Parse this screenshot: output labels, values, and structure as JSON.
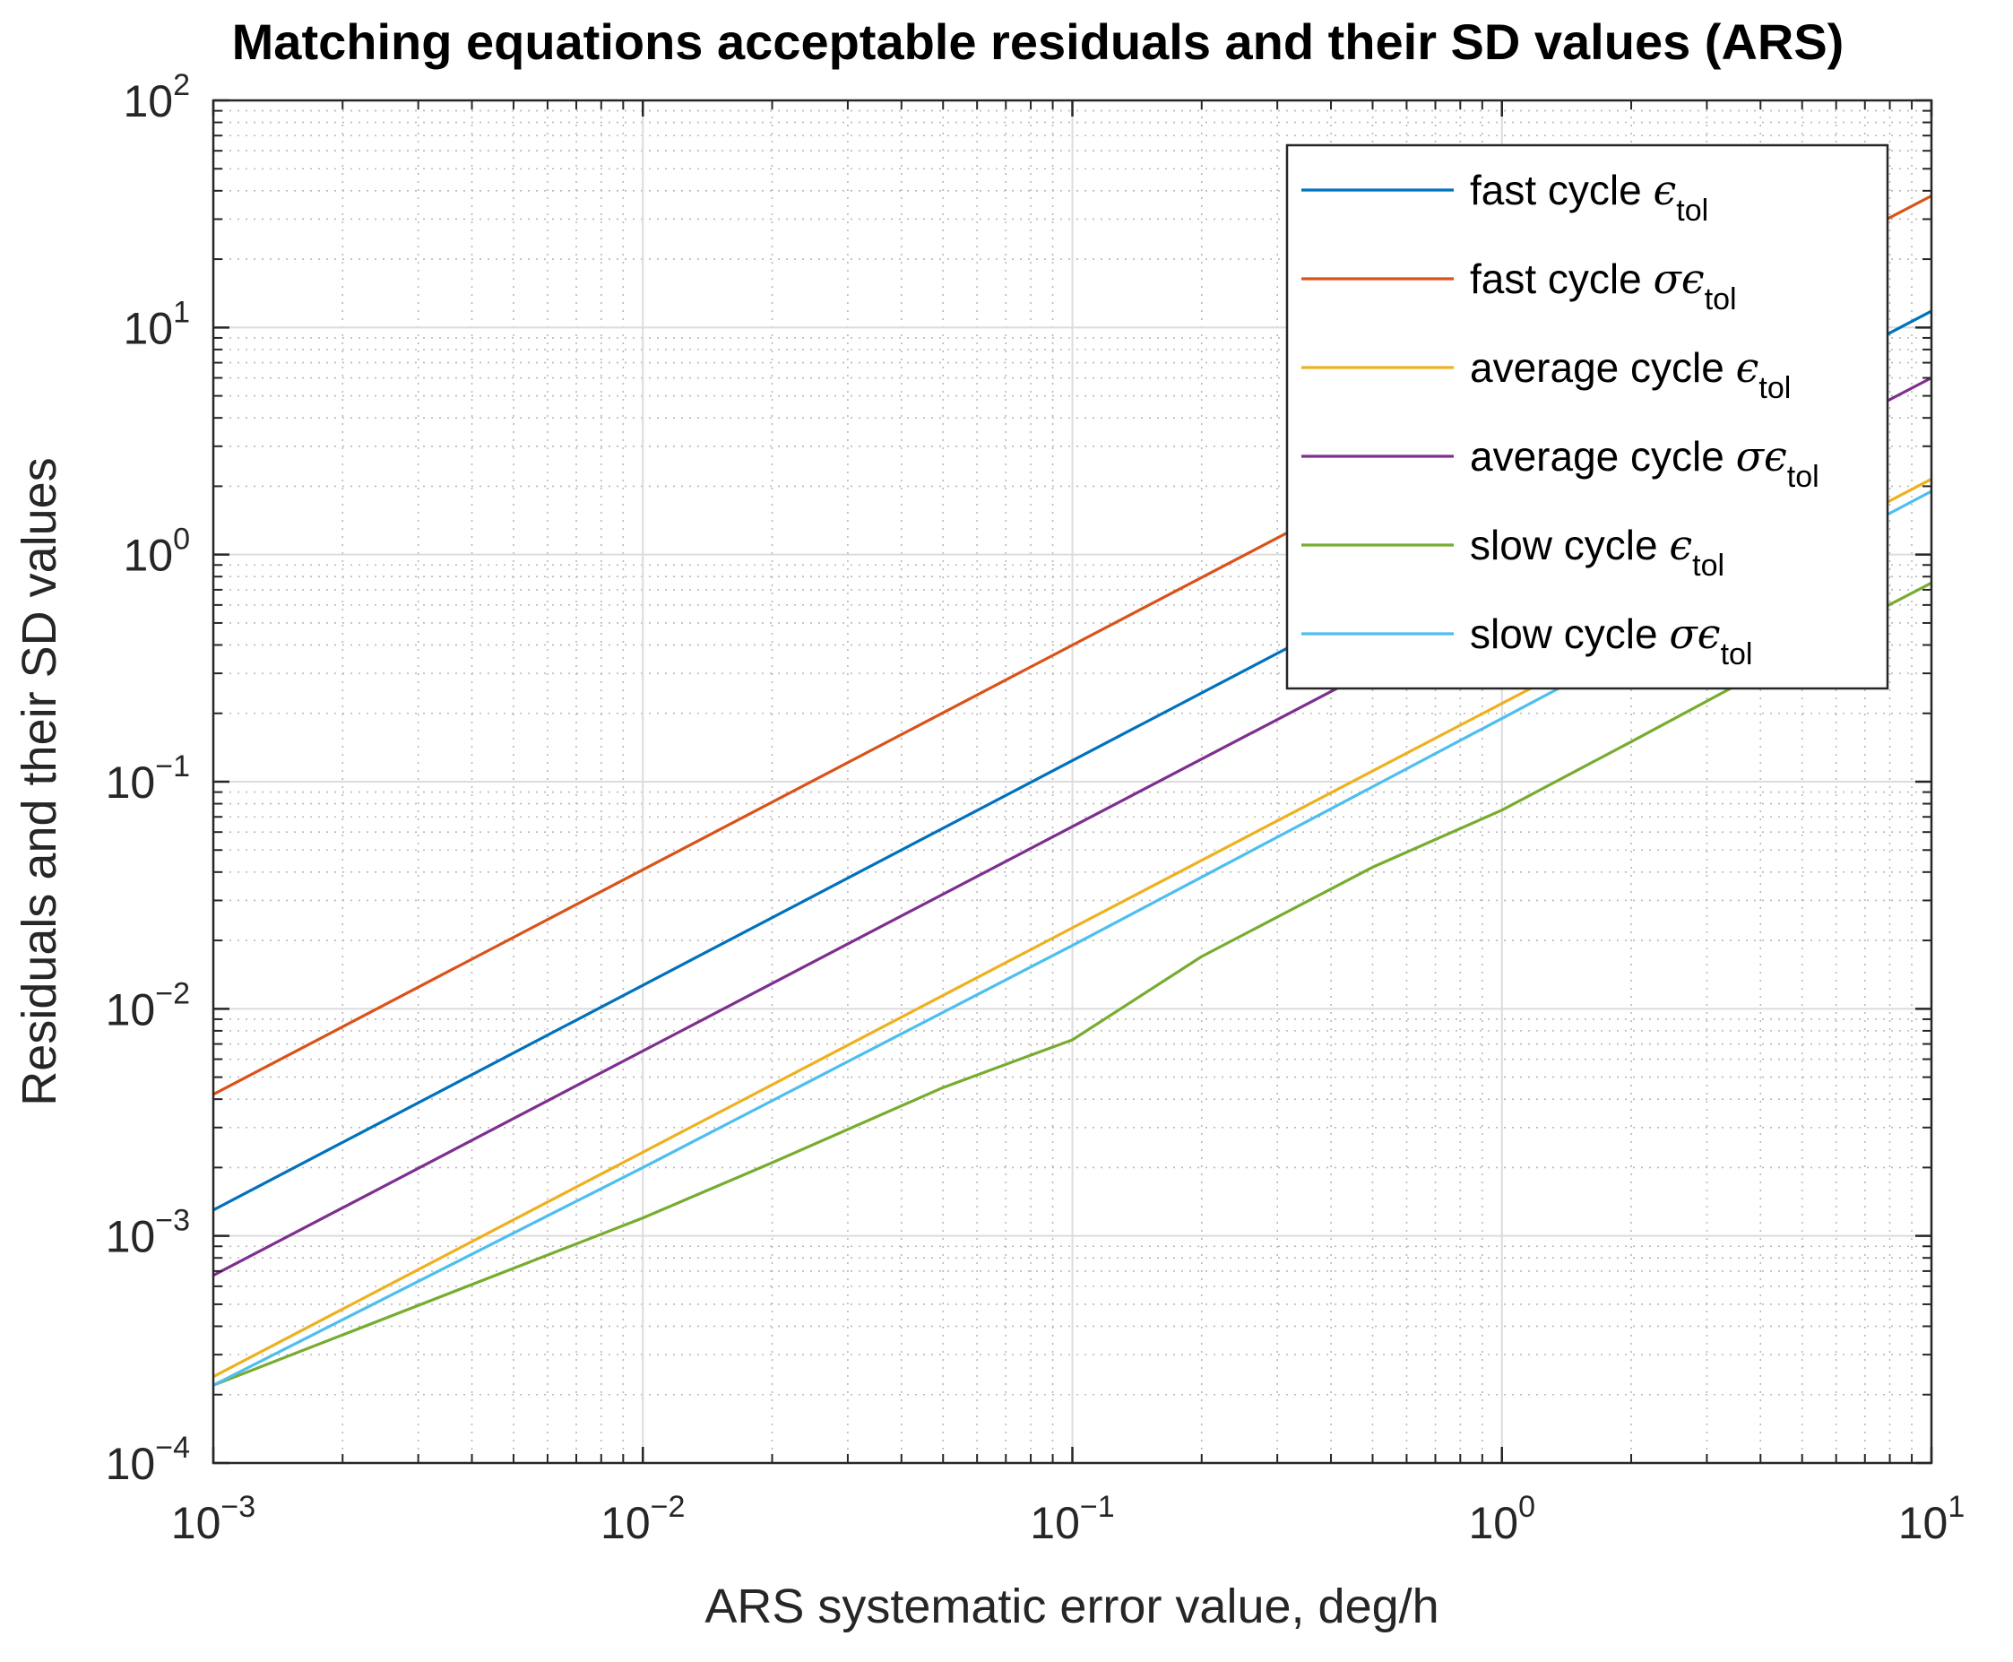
{
  "chart_data": {
    "type": "line",
    "title": "Matching equations acceptable residuals and their SD values (ARS)",
    "xlabel": "ARS systematic error value, deg/h",
    "ylabel": "Residuals and their SD values",
    "xscale": "log",
    "yscale": "log",
    "xlim": [
      0.001,
      10
    ],
    "ylim": [
      0.0001,
      100
    ],
    "grid": true,
    "minor_grid": true,
    "legend_position": "top-right",
    "x_tick_labels": [
      {
        "base": "10",
        "exp": "−3"
      },
      {
        "base": "10",
        "exp": "−2"
      },
      {
        "base": "10",
        "exp": "−1"
      },
      {
        "base": "10",
        "exp": "0"
      },
      {
        "base": "10",
        "exp": "1"
      }
    ],
    "y_tick_labels": [
      {
        "base": "10",
        "exp": "−4"
      },
      {
        "base": "10",
        "exp": "−3"
      },
      {
        "base": "10",
        "exp": "−2"
      },
      {
        "base": "10",
        "exp": "−1"
      },
      {
        "base": "10",
        "exp": "0"
      },
      {
        "base": "10",
        "exp": "1"
      },
      {
        "base": "10",
        "exp": "2"
      }
    ],
    "series": [
      {
        "name": "fast cycle ϵtol",
        "label_text": "fast cycle",
        "label_symbol": "ϵ",
        "label_sub": "tol",
        "color": "#0072BD",
        "x": [
          0.001,
          10
        ],
        "y": [
          0.0013,
          11.8
        ]
      },
      {
        "name": "fast cycle σϵtol",
        "label_text": "fast cycle",
        "label_symbol": "σϵ",
        "label_sub": "tol",
        "color": "#D95319",
        "x": [
          0.001,
          10
        ],
        "y": [
          0.0042,
          38
        ]
      },
      {
        "name": "average cycle ϵtol",
        "label_text": "average cycle",
        "label_symbol": "ϵ",
        "label_sub": "tol",
        "color": "#EDB120",
        "x": [
          0.001,
          10
        ],
        "y": [
          0.00024,
          2.15
        ]
      },
      {
        "name": "average cycle σϵtol",
        "label_text": "average cycle",
        "label_symbol": "σϵ",
        "label_sub": "tol",
        "color": "#7E2F8E",
        "x": [
          0.001,
          10
        ],
        "y": [
          0.00067,
          6.0
        ]
      },
      {
        "name": "slow cycle ϵtol",
        "label_text": "slow cycle",
        "label_symbol": "ϵ",
        "label_sub": "tol",
        "color": "#77AC30",
        "x": [
          0.001,
          0.01,
          0.02,
          0.05,
          0.1,
          0.2,
          0.5,
          1,
          2,
          5,
          10
        ],
        "y": [
          0.00022,
          0.0012,
          0.0021,
          0.0045,
          0.0073,
          0.017,
          0.042,
          0.075,
          0.15,
          0.38,
          0.75
        ]
      },
      {
        "name": "slow cycle σϵtol",
        "label_text": "slow cycle",
        "label_symbol": "σϵ",
        "label_sub": "tol",
        "color": "#4DBEEE",
        "x": [
          0.001,
          0.01,
          0.1,
          1,
          10
        ],
        "y": [
          0.00022,
          0.002,
          0.019,
          0.19,
          1.9
        ]
      }
    ]
  }
}
